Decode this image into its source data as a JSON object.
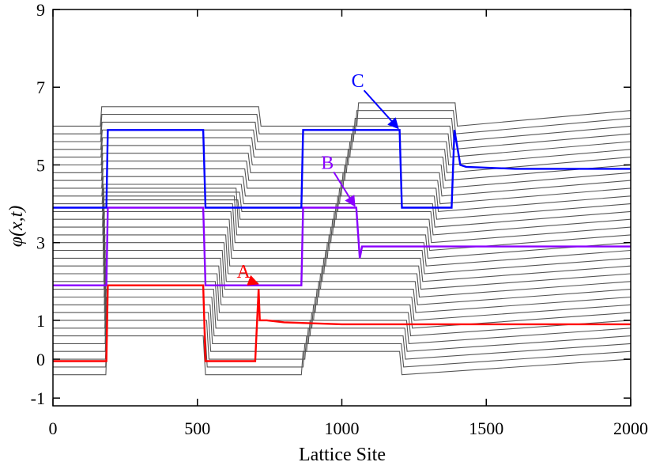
{
  "chart_data": {
    "type": "line",
    "xlabel": "Lattice Site",
    "ylabel": "φ(x,t)",
    "xlim": [
      0,
      2000
    ],
    "ylim": [
      -1.2,
      9
    ],
    "x_ticks": [
      0,
      500,
      1000,
      1500,
      2000
    ],
    "x_tick_labels": [
      "0",
      "500",
      "1000",
      "1500",
      "2000"
    ],
    "y_ticks": [
      -1,
      0,
      1,
      3,
      5,
      7,
      9
    ],
    "y_tick_labels": [
      "-1",
      "0",
      "1",
      "3",
      "5",
      "7",
      "9"
    ],
    "grid": false,
    "legend": "none",
    "background_lines": {
      "color": "#555555",
      "count": 33,
      "baseline_start": -0.4,
      "baseline_step": 0.2,
      "description_pattern": "stacked traces offset vertically"
    },
    "series": [
      {
        "color": "#ff0000",
        "x": [
          0,
          185,
          190,
          520,
          528,
          700,
          712,
          716,
          720,
          740,
          800,
          1000,
          2000
        ],
        "y": [
          -0.05,
          -0.05,
          1.9,
          1.9,
          -0.05,
          -0.05,
          1.8,
          1.0,
          1.0,
          1.0,
          0.95,
          0.9,
          0.9
        ]
      },
      {
        "color": "#8a00ff",
        "x": [
          0,
          185,
          190,
          520,
          528,
          860,
          866,
          1050,
          1062,
          1070,
          1100,
          1300,
          2000
        ],
        "y": [
          1.9,
          1.9,
          3.9,
          3.9,
          1.9,
          1.9,
          3.9,
          3.9,
          2.6,
          2.9,
          2.9,
          2.9,
          2.9
        ]
      },
      {
        "color": "#0000ff",
        "x": [
          0,
          185,
          190,
          520,
          528,
          860,
          866,
          1200,
          1208,
          1380,
          1390,
          1410,
          1430,
          1600,
          2000
        ],
        "y": [
          3.9,
          3.9,
          5.9,
          5.9,
          3.9,
          3.9,
          5.9,
          5.9,
          3.9,
          3.9,
          5.9,
          5.0,
          4.95,
          4.9,
          4.9
        ]
      }
    ],
    "annotations": [
      {
        "label": "A",
        "color": "#ff0000",
        "text_at": [
          660,
          2.1
        ],
        "arrow_to": [
          710,
          1.9
        ]
      },
      {
        "label": "B",
        "color": "#8a00ff",
        "text_at": [
          950,
          4.9
        ],
        "arrow_to": [
          1045,
          3.9
        ]
      },
      {
        "label": "C",
        "color": "#0000ff",
        "text_at": [
          1055,
          7.0
        ],
        "arrow_to": [
          1195,
          5.9
        ]
      }
    ]
  }
}
